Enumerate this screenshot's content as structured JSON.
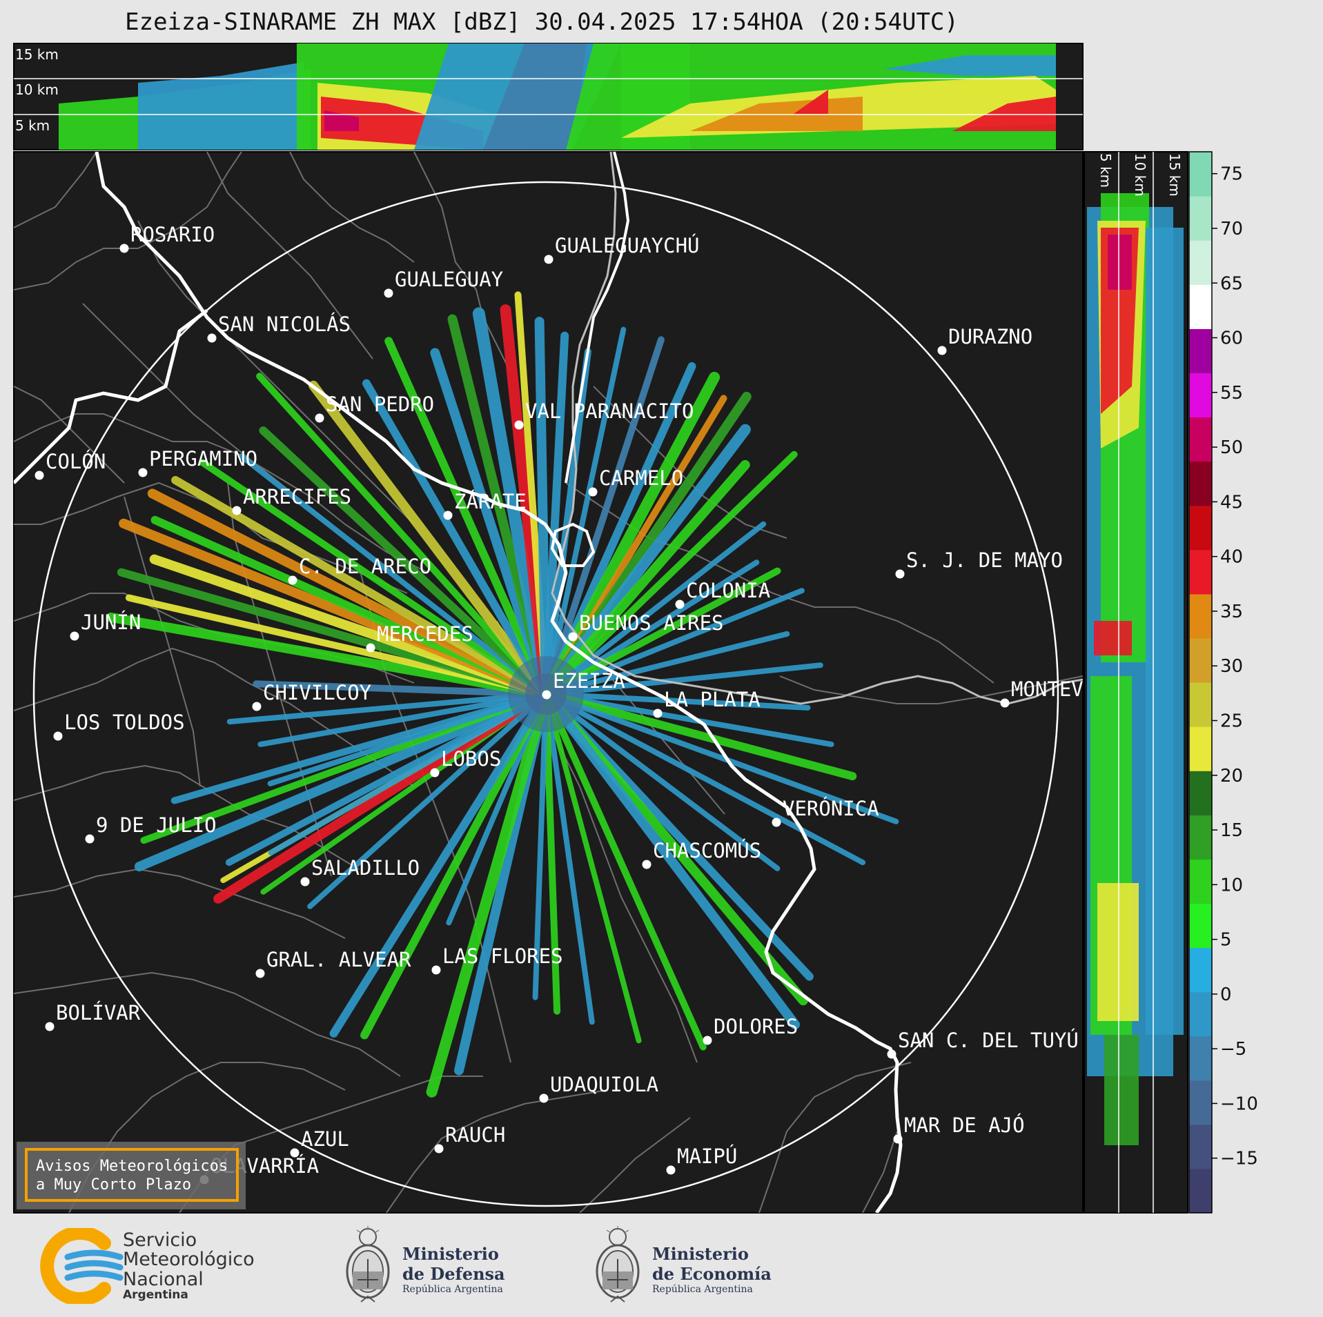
{
  "title": "Ezeiza-SINARAME ZH MAX [dBZ] 30.04.2025 17:54HOA (20:54UTC)",
  "top_panel": {
    "alt_labels": [
      "15 km",
      "10 km",
      "5 km"
    ]
  },
  "side_panel": {
    "alt_labels": [
      "5 km",
      "10 km",
      "15 km"
    ]
  },
  "colorbar": {
    "ticks": [
      "75",
      "70",
      "65",
      "60",
      "55",
      "50",
      "45",
      "40",
      "35",
      "30",
      "25",
      "20",
      "15",
      "10",
      "5",
      "0",
      "−5",
      "−10",
      "−15"
    ],
    "colors": {
      "scale": [
        "#3f3f6e",
        "#44507e",
        "#456a95",
        "#3f80ad",
        "#2f98c8",
        "#26aee0",
        "#27f020",
        "#2ed11d",
        "#2fa025",
        "#23701f",
        "#e8e83a",
        "#c8c834",
        "#d2a028",
        "#e08a14",
        "#e81a28",
        "#c80a10",
        "#8a0020",
        "#c80060",
        "#e00ae0",
        "#a000a0",
        "#ffffff",
        "#d0f0e0",
        "#a8e6c8",
        "#80d8b4"
      ]
    }
  },
  "cities": [
    {
      "name": "ROSARIO"
    },
    {
      "name": "GUALEGUAYCHÚ"
    },
    {
      "name": "GUALEGUAY"
    },
    {
      "name": "SAN NICOLÁS"
    },
    {
      "name": "DURAZNO"
    },
    {
      "name": "SAN PEDRO"
    },
    {
      "name": "VAL PARANACITO"
    },
    {
      "name": "COLÓN"
    },
    {
      "name": "PERGAMINO"
    },
    {
      "name": "CARMELO"
    },
    {
      "name": "ARRECIFES"
    },
    {
      "name": "ZÁRATE"
    },
    {
      "name": "S. J. DE MAYO"
    },
    {
      "name": "C. DE ARECO"
    },
    {
      "name": "COLONIA"
    },
    {
      "name": "JUNÍN"
    },
    {
      "name": "BUENOS AIRES"
    },
    {
      "name": "MERCEDES"
    },
    {
      "name": "EZEIZA"
    },
    {
      "name": "MONTEV"
    },
    {
      "name": "CHIVILCOY"
    },
    {
      "name": "LA PLATA"
    },
    {
      "name": "LOS TOLDOS"
    },
    {
      "name": "LOBOS"
    },
    {
      "name": "VERÓNICA"
    },
    {
      "name": "9 DE JULIO"
    },
    {
      "name": "CHASCOMÚS"
    },
    {
      "name": "SALADILLO"
    },
    {
      "name": "GRAL. ALVEAR"
    },
    {
      "name": "LAS FLORES"
    },
    {
      "name": "BOLÍVAR"
    },
    {
      "name": "DOLORES"
    },
    {
      "name": "SAN C. DEL TUYÚ"
    },
    {
      "name": "UDAQUIOLA"
    },
    {
      "name": "MAR DE AJÓ"
    },
    {
      "name": "AZUL"
    },
    {
      "name": "RAUCH"
    },
    {
      "name": "OLAVARRÍA"
    },
    {
      "name": "MAIPÚ"
    }
  ],
  "alert_box": {
    "line1": "Avisos Meteorológicos",
    "line2": "a Muy Corto Plazo"
  },
  "logos": {
    "smn": {
      "line1": "Servicio",
      "line2": "Meteorológico",
      "line3": "Nacional",
      "line4": "Argentina"
    },
    "defensa": {
      "line1": "Ministerio",
      "line2": "de Defensa",
      "line3": "República Argentina"
    },
    "economia": {
      "line1": "Ministerio",
      "line2": "de Economía",
      "line3": "República Argentina"
    }
  },
  "colors": {
    "map_bg": "#1c1c1c",
    "range_ring": "#ffffff",
    "alert_border": "#f5a000"
  }
}
